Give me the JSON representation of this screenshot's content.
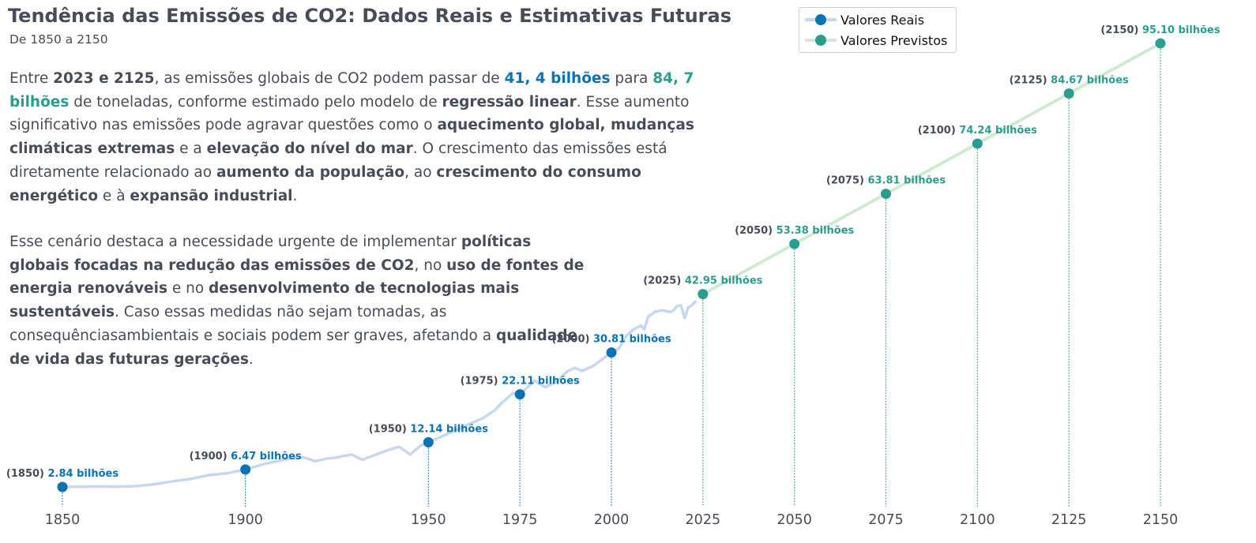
{
  "title": "Tendência das Emissões de CO2: Dados Reais e Estimativas Futuras",
  "subtitle": "De 1850 a 2150",
  "paragraph1": [
    {
      "t": "Entre "
    },
    {
      "t": "2023 e 2125",
      "b": true
    },
    {
      "t": ", as emissões globais de CO2 podem passar de "
    },
    {
      "t": "41, 4 bilhões",
      "c": "real"
    },
    {
      "t": " para "
    },
    {
      "t": "84, 7 bilhões",
      "c": "prev"
    },
    {
      "t": " de toneladas, conforme estimado pelo modelo de "
    },
    {
      "t": "regressão linear",
      "b": true
    },
    {
      "t": ". Esse aumento significativo nas emissões pode agravar questões como o "
    },
    {
      "t": "aquecimento global,  mudanças climáticas extremas",
      "b": true
    },
    {
      "t": " e a "
    },
    {
      "t": "elevação do nível do mar",
      "b": true
    },
    {
      "t": ". O crescimento das emissões está diretamente relacionado ao "
    },
    {
      "t": "aumento da população",
      "b": true
    },
    {
      "t": ", ao "
    },
    {
      "t": "crescimento do consumo energético",
      "b": true
    },
    {
      "t": " e à "
    },
    {
      "t": "expansão industrial",
      "b": true
    },
    {
      "t": "."
    }
  ],
  "paragraph2": [
    {
      "t": "Esse cenário destaca a necessidade urgente de implementar "
    },
    {
      "t": "políticas globais focadas na redução das emissões de CO2",
      "b": true
    },
    {
      "t": ", no "
    },
    {
      "t": "uso de fontes de energia renováveis",
      "b": true
    },
    {
      "t": " e no "
    },
    {
      "t": "desenvolvimento de tecnologias mais sustentáveis",
      "b": true
    },
    {
      "t": ". Caso essas medidas não sejam tomadas, as consequênciasambientais e sociais podem ser graves, afetando a "
    },
    {
      "t": "qualidade de vida das futuras gerações",
      "b": true
    },
    {
      "t": "."
    }
  ],
  "legend": {
    "real": "Valores Reais",
    "forecast": "Valores Previstos"
  },
  "colors": {
    "real_point": "#0a72b5",
    "real_line": "#c6d8f0",
    "forecast_point": "#2a9d8f",
    "forecast_line": "#cfeacf",
    "text": "#464d58"
  },
  "chart_data": {
    "type": "line",
    "xlim": [
      1850,
      2150
    ],
    "x_ticks": [
      1850,
      1900,
      1950,
      1975,
      2000,
      2025,
      2050,
      2075,
      2100,
      2125,
      2150
    ],
    "real_points": [
      {
        "year": 1850,
        "value": 2.84,
        "label": "2.84 bilhões"
      },
      {
        "year": 1900,
        "value": 6.47,
        "label": "6.47 bilhões"
      },
      {
        "year": 1950,
        "value": 12.14,
        "label": "12.14 bilhões"
      },
      {
        "year": 1975,
        "value": 22.11,
        "label": "22.11 bilhões"
      },
      {
        "year": 2000,
        "value": 30.81,
        "label": "30.81 bilhões"
      }
    ],
    "forecast_points": [
      {
        "year": 2025,
        "value": 42.95,
        "label": "42.95 bilhões"
      },
      {
        "year": 2050,
        "value": 53.38,
        "label": "53.38 bilhões"
      },
      {
        "year": 2075,
        "value": 63.81,
        "label": "63.81 bilhões"
      },
      {
        "year": 2100,
        "value": 74.24,
        "label": "74.24 bilhões"
      },
      {
        "year": 2125,
        "value": 84.67,
        "label": "84.67 bilhões"
      },
      {
        "year": 2150,
        "value": 95.1,
        "label": "95.10 bilhões"
      }
    ],
    "real_series": [
      [
        1850,
        2.84
      ],
      [
        1855,
        2.9
      ],
      [
        1860,
        2.95
      ],
      [
        1865,
        2.9
      ],
      [
        1870,
        3.0
      ],
      [
        1875,
        3.4
      ],
      [
        1880,
        4.0
      ],
      [
        1885,
        4.5
      ],
      [
        1890,
        5.3
      ],
      [
        1895,
        5.7
      ],
      [
        1900,
        6.47
      ],
      [
        1905,
        7.6
      ],
      [
        1910,
        8.4
      ],
      [
        1913,
        8.9
      ],
      [
        1916,
        9.0
      ],
      [
        1919,
        8.2
      ],
      [
        1922,
        8.7
      ],
      [
        1925,
        9.0
      ],
      [
        1929,
        9.6
      ],
      [
        1932,
        8.5
      ],
      [
        1935,
        9.4
      ],
      [
        1939,
        10.5
      ],
      [
        1942,
        11.2
      ],
      [
        1945,
        9.6
      ],
      [
        1948,
        11.5
      ],
      [
        1950,
        12.14
      ],
      [
        1955,
        13.8
      ],
      [
        1960,
        15.5
      ],
      [
        1965,
        17.2
      ],
      [
        1968,
        18.7
      ],
      [
        1970,
        20.3
      ],
      [
        1972,
        21.6
      ],
      [
        1973,
        22.3
      ],
      [
        1975,
        22.11
      ],
      [
        1978,
        24.2
      ],
      [
        1979,
        25.0
      ],
      [
        1980,
        24.4
      ],
      [
        1982,
        23.6
      ],
      [
        1985,
        24.8
      ],
      [
        1988,
        26.9
      ],
      [
        1990,
        27.6
      ],
      [
        1992,
        27.0
      ],
      [
        1995,
        28.0
      ],
      [
        1998,
        29.7
      ],
      [
        2000,
        30.81
      ],
      [
        2002,
        31.6
      ],
      [
        2004,
        34.2
      ],
      [
        2006,
        35.6
      ],
      [
        2008,
        36.4
      ],
      [
        2009,
        35.6
      ],
      [
        2010,
        38.2
      ],
      [
        2012,
        39.3
      ],
      [
        2014,
        39.6
      ],
      [
        2016,
        39.2
      ],
      [
        2017,
        39.6
      ],
      [
        2018,
        40.5
      ],
      [
        2019,
        40.6
      ],
      [
        2020,
        38.0
      ],
      [
        2021,
        40.2
      ],
      [
        2022,
        40.6
      ],
      [
        2023,
        41.4
      ]
    ]
  }
}
